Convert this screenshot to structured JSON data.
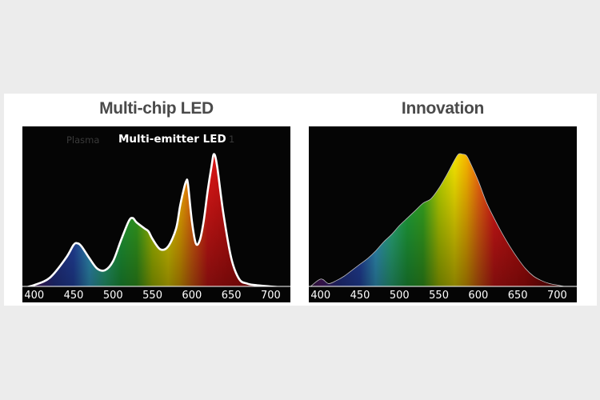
{
  "chart_data": [
    {
      "type": "area",
      "title": "Multi-chip LED",
      "annotations": [
        "Multi-emitter LED",
        "Plasma",
        "1"
      ],
      "xlim": [
        385,
        725
      ],
      "ylim": [
        0,
        1
      ],
      "xticks": [
        400,
        450,
        500,
        550,
        600,
        650,
        700
      ],
      "grid": false,
      "series": [
        {
          "x": [
            385,
            400,
            420,
            440,
            450,
            455,
            460,
            470,
            480,
            490,
            500,
            510,
            520,
            525,
            530,
            540,
            545,
            550,
            560,
            570,
            580,
            585,
            590,
            593,
            595,
            600,
            605,
            610,
            615,
            620,
            625,
            628,
            632,
            640,
            650,
            660,
            670,
            680,
            700,
            725
          ],
          "values": [
            0.0,
            0.02,
            0.07,
            0.2,
            0.29,
            0.3,
            0.28,
            0.2,
            0.13,
            0.12,
            0.18,
            0.32,
            0.45,
            0.47,
            0.44,
            0.4,
            0.38,
            0.33,
            0.26,
            0.28,
            0.4,
            0.55,
            0.67,
            0.72,
            0.7,
            0.45,
            0.3,
            0.32,
            0.45,
            0.65,
            0.82,
            0.9,
            0.82,
            0.5,
            0.2,
            0.06,
            0.03,
            0.02,
            0.01,
            0.0
          ]
        }
      ]
    },
    {
      "type": "area",
      "title": "Innovation",
      "xlim": [
        385,
        725
      ],
      "ylim": [
        0,
        1
      ],
      "xticks": [
        400,
        450,
        500,
        550,
        600,
        650,
        700
      ],
      "grid": false,
      "series": [
        {
          "x": [
            385,
            400,
            410,
            420,
            430,
            440,
            450,
            460,
            470,
            480,
            490,
            500,
            510,
            520,
            530,
            540,
            550,
            560,
            570,
            575,
            580,
            585,
            590,
            600,
            610,
            620,
            630,
            640,
            650,
            660,
            670,
            680,
            690,
            700,
            710,
            720
          ],
          "values": [
            0.0,
            0.06,
            0.03,
            0.05,
            0.08,
            0.12,
            0.16,
            0.2,
            0.25,
            0.31,
            0.36,
            0.42,
            0.47,
            0.52,
            0.57,
            0.6,
            0.67,
            0.76,
            0.86,
            0.9,
            0.9,
            0.89,
            0.84,
            0.72,
            0.58,
            0.47,
            0.37,
            0.28,
            0.2,
            0.13,
            0.08,
            0.05,
            0.03,
            0.02,
            0.01,
            0.0
          ]
        }
      ]
    }
  ]
}
